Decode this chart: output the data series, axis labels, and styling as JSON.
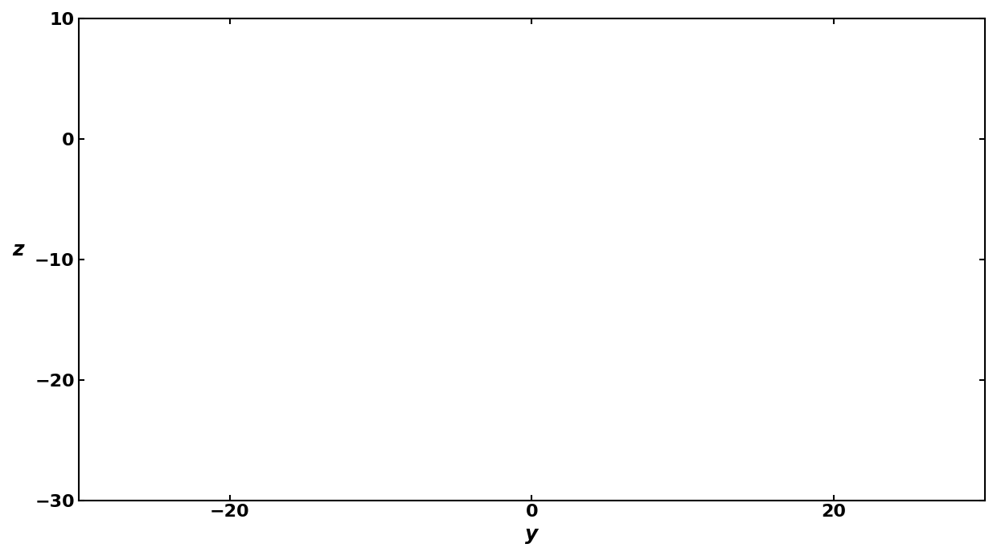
{
  "title": "",
  "xlabel": "y",
  "ylabel": "z",
  "xlim": [
    -30,
    30
  ],
  "ylim": [
    -30,
    10
  ],
  "xticks": [
    -20,
    0,
    20
  ],
  "yticks": [
    -30,
    -20,
    -10,
    0,
    10
  ],
  "line_color": "#000000",
  "line_width": 0.35,
  "background_color": "#ffffff",
  "figsize": [
    12.4,
    6.92
  ],
  "dpi": 100,
  "xlabel_fontsize": 18,
  "ylabel_fontsize": 18,
  "tick_fontsize": 16,
  "tick_fontweight": "bold",
  "label_fontweight": "bold",
  "system_params": {
    "a": 10,
    "b": 28,
    "c": 8,
    "d": 1,
    "e": 14,
    "f": 0.5,
    "r": 0.05
  },
  "initial_conditions": [
    1.0,
    0.1,
    0.1,
    0.0,
    0.0
  ],
  "dt": 0.001,
  "t_total": 500,
  "skip": 50000
}
